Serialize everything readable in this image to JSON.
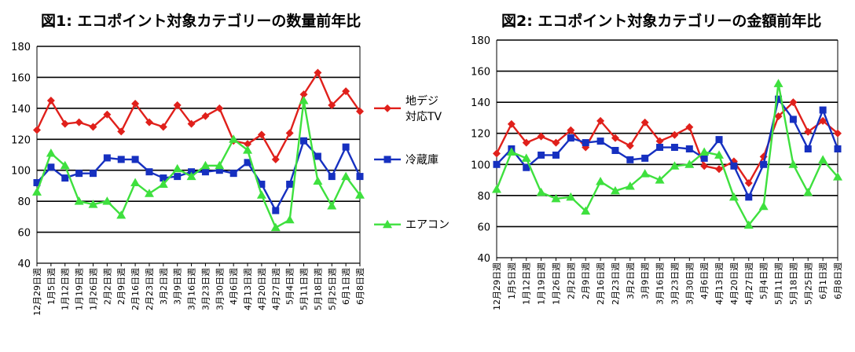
{
  "chart_data": [
    {
      "type": "line",
      "title": "図1: エコポイント対象カテゴリーの数量前年比",
      "ylim": [
        40,
        180
      ],
      "yticks": [
        40,
        60,
        80,
        100,
        120,
        140,
        160,
        180
      ],
      "grid": true,
      "legend_position": "right",
      "categories": [
        "12月29日週",
        "1月5日週",
        "1月12日週",
        "1月19日週",
        "1月26日週",
        "2月2日週",
        "2月9日週",
        "2月16日週",
        "2月23日週",
        "3月2日週",
        "3月9日週",
        "3月16日週",
        "3月23日週",
        "3月30日週",
        "4月6日週",
        "4月13日週",
        "4月20日週",
        "4月27日週",
        "5月4日週",
        "5月11日週",
        "5月18日週",
        "5月25日週",
        "6月1日週",
        "6月8日週"
      ],
      "series": [
        {
          "name": "地デジ対応TV",
          "legend_lines": [
            "地デジ",
            "対応TV"
          ],
          "color": "#e0201b",
          "marker": "diamond",
          "values": [
            126,
            145,
            130,
            131,
            128,
            136,
            125,
            143,
            131,
            128,
            142,
            130,
            135,
            140,
            119,
            117,
            123,
            107,
            124,
            149,
            163,
            142,
            151,
            138
          ]
        },
        {
          "name": "冷蔵庫",
          "legend_lines": [
            "冷蔵庫"
          ],
          "color": "#1630c0",
          "marker": "square",
          "values": [
            92,
            102,
            95,
            98,
            98,
            108,
            107,
            107,
            99,
            95,
            96,
            99,
            99,
            100,
            98,
            105,
            91,
            74,
            91,
            119,
            109,
            96,
            115,
            96
          ]
        },
        {
          "name": "エアコン",
          "legend_lines": [
            "エアコン"
          ],
          "color": "#3ee03e",
          "marker": "triangle",
          "values": [
            86,
            111,
            103,
            80,
            78,
            80,
            71,
            92,
            85,
            91,
            101,
            96,
            103,
            103,
            120,
            113,
            84,
            63,
            68,
            145,
            93,
            77,
            96,
            84
          ]
        }
      ]
    },
    {
      "type": "line",
      "title": "図2: エコポイント対象カテゴリーの金額前年比",
      "ylim": [
        40,
        180
      ],
      "yticks": [
        40,
        60,
        80,
        100,
        120,
        140,
        160,
        180
      ],
      "grid": true,
      "categories": [
        "12月29日週",
        "1月5日週",
        "1月12日週",
        "1月19日週",
        "1月26日週",
        "2月2日週",
        "2月9日週",
        "2月16日週",
        "2月23日週",
        "3月2日週",
        "3月9日週",
        "3月16日週",
        "3月23日週",
        "3月30日週",
        "4月6日週",
        "4月13日週",
        "4月20日週",
        "4月27日週",
        "5月4日週",
        "5月11日週",
        "5月18日週",
        "5月25日週",
        "6月1日週",
        "6月8日週"
      ],
      "series": [
        {
          "name": "地デジ対応TV",
          "color": "#e0201b",
          "marker": "diamond",
          "values": [
            107,
            126,
            114,
            118,
            114,
            122,
            111,
            128,
            117,
            112,
            127,
            115,
            119,
            124,
            99,
            97,
            102,
            88,
            105,
            131,
            140,
            121,
            128,
            120
          ]
        },
        {
          "name": "冷蔵庫",
          "color": "#1630c0",
          "marker": "square",
          "values": [
            100,
            110,
            98,
            106,
            106,
            117,
            114,
            115,
            109,
            103,
            104,
            111,
            111,
            110,
            104,
            116,
            99,
            79,
            100,
            142,
            129,
            110,
            135,
            110
          ]
        },
        {
          "name": "エアコン",
          "color": "#3ee03e",
          "marker": "triangle",
          "values": [
            84,
            108,
            104,
            82,
            78,
            79,
            70,
            89,
            83,
            86,
            94,
            90,
            99,
            100,
            108,
            106,
            79,
            61,
            73,
            152,
            100,
            82,
            103,
            92
          ]
        }
      ]
    }
  ]
}
